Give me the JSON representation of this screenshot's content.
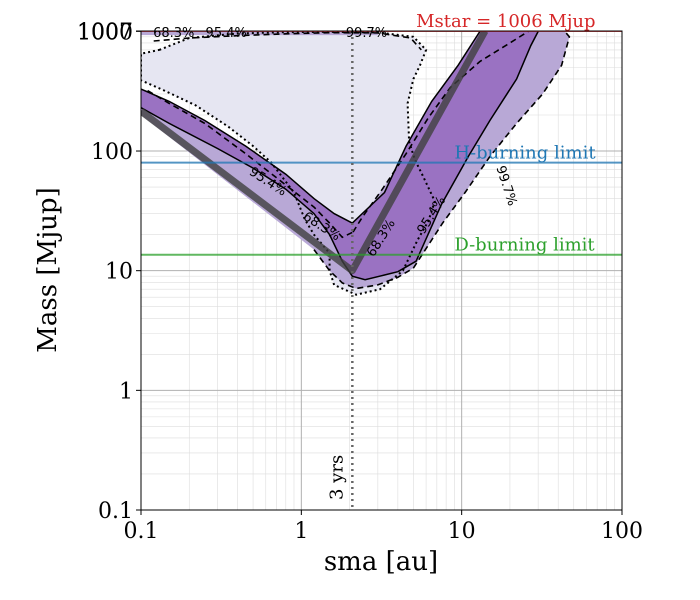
{
  "chart_data": {
    "type": "contour",
    "x_scale": "log",
    "y_scale": "log",
    "xlim": [
      0.1,
      100
    ],
    "ylim": [
      0.1,
      1007
    ],
    "xlabel": "sma [au]",
    "ylabel": "Mass [Mjup]",
    "x_ticks": [
      {
        "value": 0.1,
        "label": "0.1"
      },
      {
        "value": 1,
        "label": "1"
      },
      {
        "value": 10,
        "label": "10"
      },
      {
        "value": 100,
        "label": "100"
      }
    ],
    "y_ticks": [
      {
        "value": 0.1,
        "label": "0.1"
      },
      {
        "value": 1,
        "label": "1"
      },
      {
        "value": 10,
        "label": "10"
      },
      {
        "value": 100,
        "label": "100"
      },
      {
        "value": 1000,
        "label": "1000"
      },
      {
        "value": 1007,
        "label": "1007"
      }
    ],
    "colors": {
      "contour_fill_outer": "#e6e6f2",
      "contour_fill_mid": "#b8a8d6",
      "contour_fill_inner": "#9a72c2",
      "trend_line": "#404040",
      "mstar": "#d62728",
      "h_burning": "#1f77b4",
      "d_burning": "#2ca02c",
      "period_line": "#666666",
      "grid": "#b0b0b0"
    },
    "hlines": [
      {
        "name": "mstar",
        "y": 1006,
        "label": "Mstar = 1006 Mjup",
        "label_x": 5.2
      },
      {
        "name": "h-burning",
        "y": 80,
        "label": "H-burning limit",
        "label_x": 9.0
      },
      {
        "name": "d-burning",
        "y": 13.6,
        "label": "D-burning limit",
        "label_x": 9.0
      }
    ],
    "vline": {
      "x": 2.08,
      "label": "3 yrs"
    },
    "contour_levels": [
      "68.3%",
      "95.4%",
      "99.7%"
    ],
    "contours": {
      "c997": [
        [
          0.13,
          700
        ],
        [
          0.2,
          880
        ],
        [
          0.4,
          960
        ],
        [
          0.8,
          985
        ],
        [
          1.5,
          990
        ],
        [
          3,
          980
        ],
        [
          5,
          900
        ],
        [
          6,
          700
        ],
        [
          5.5,
          520
        ],
        [
          5,
          400
        ],
        [
          4.6,
          250
        ],
        [
          4.7,
          120
        ],
        [
          5.1,
          85
        ],
        [
          5.8,
          60
        ],
        [
          6.8,
          38
        ],
        [
          6.2,
          26
        ],
        [
          5.3,
          18
        ],
        [
          4.3,
          10
        ],
        [
          3.1,
          7
        ],
        [
          2.2,
          6.3
        ],
        [
          1.6,
          7.6
        ],
        [
          1.5,
          10
        ],
        [
          1.5,
          14
        ],
        [
          1.2,
          20
        ],
        [
          1.05,
          27
        ],
        [
          0.9,
          45
        ],
        [
          0.65,
          80
        ],
        [
          0.5,
          110
        ],
        [
          0.35,
          160
        ],
        [
          0.22,
          240
        ],
        [
          0.14,
          320
        ],
        [
          0.1,
          390
        ],
        [
          0.1,
          650
        ]
      ],
      "c954_left": [
        [
          0.11,
          320
        ],
        [
          0.15,
          250
        ],
        [
          0.25,
          170
        ],
        [
          0.45,
          95
        ],
        [
          0.8,
          52
        ],
        [
          1.2,
          34
        ],
        [
          1.5,
          25
        ],
        [
          1.8,
          19
        ],
        [
          2.1,
          21
        ]
      ],
      "c954_bottom": [
        [
          1.2,
          15
        ],
        [
          1.5,
          10
        ],
        [
          1.8,
          7.9
        ],
        [
          2.2,
          7.1
        ],
        [
          3,
          7.6
        ],
        [
          4,
          8.8
        ],
        [
          5,
          10.5
        ]
      ],
      "c954_top": [
        [
          0.12,
          830
        ],
        [
          0.2,
          880
        ],
        [
          0.4,
          920
        ],
        [
          0.8,
          955
        ],
        [
          1.5,
          975
        ],
        [
          3,
          970
        ],
        [
          4.8,
          880
        ],
        [
          5.6,
          700
        ]
      ],
      "c954_right": [
        [
          2.1,
          21
        ],
        [
          2.4,
          28
        ],
        [
          3.2,
          48
        ],
        [
          4.5,
          95
        ],
        [
          6.2,
          190
        ],
        [
          8.5,
          340
        ],
        [
          13,
          560
        ],
        [
          20,
          800
        ],
        [
          26,
          1000
        ]
      ],
      "c954_right_bottom": [
        [
          5,
          10.5
        ],
        [
          7.6,
          25
        ],
        [
          10.5,
          45
        ],
        [
          15,
          90
        ],
        [
          22,
          170
        ],
        [
          32,
          300
        ],
        [
          42,
          520
        ],
        [
          47,
          900
        ],
        [
          44,
          1000
        ]
      ],
      "c683_left": [
        [
          0.1,
          330
        ],
        [
          0.15,
          260
        ],
        [
          0.25,
          180
        ],
        [
          0.45,
          110
        ],
        [
          0.8,
          64
        ],
        [
          1.2,
          40
        ],
        [
          1.6,
          30
        ],
        [
          2.08,
          25
        ]
      ],
      "c683_bottom": [
        [
          0.1,
          230
        ],
        [
          0.15,
          170
        ],
        [
          0.3,
          105
        ],
        [
          0.5,
          72
        ],
        [
          0.8,
          48
        ],
        [
          1.2,
          30
        ],
        [
          1.5,
          20
        ],
        [
          1.8,
          12
        ],
        [
          2.08,
          9
        ],
        [
          2.5,
          8.4
        ],
        [
          3.3,
          9.2
        ],
        [
          4,
          9.8
        ]
      ],
      "c683_right": [
        [
          2.08,
          25
        ],
        [
          3.3,
          45
        ],
        [
          4.5,
          110
        ],
        [
          6.5,
          260
        ],
        [
          9.5,
          520
        ],
        [
          13,
          1000
        ]
      ],
      "c683_right_bottom": [
        [
          4,
          9.8
        ],
        [
          5.2,
          12
        ],
        [
          7.5,
          36
        ],
        [
          11,
          90
        ],
        [
          15,
          180
        ],
        [
          22,
          400
        ],
        [
          27,
          760
        ],
        [
          30,
          1000
        ]
      ]
    },
    "trend_line": [
      [
        0.1,
        215
      ],
      [
        2.08,
        10
      ],
      [
        14,
        1007
      ]
    ],
    "contour_labels": [
      {
        "text": "68.3%",
        "x": 0.16,
        "y": 900,
        "rotate": 0
      },
      {
        "text": "95.4%",
        "x": 0.34,
        "y": 900,
        "rotate": 0
      },
      {
        "text": "99.7%",
        "x": 2.55,
        "y": 900,
        "rotate": 0
      },
      {
        "text": "95.4%",
        "x": 0.6,
        "y": 52,
        "rotate": 33
      },
      {
        "text": "68.3%",
        "x": 1.3,
        "y": 22,
        "rotate": 33
      },
      {
        "text": "68.3%",
        "x": 3.3,
        "y": 18,
        "rotate": -58
      },
      {
        "text": "95.4%",
        "x": 6.8,
        "y": 28,
        "rotate": -58
      },
      {
        "text": "99.7%",
        "x": 18,
        "y": 50,
        "rotate": 72
      }
    ]
  }
}
